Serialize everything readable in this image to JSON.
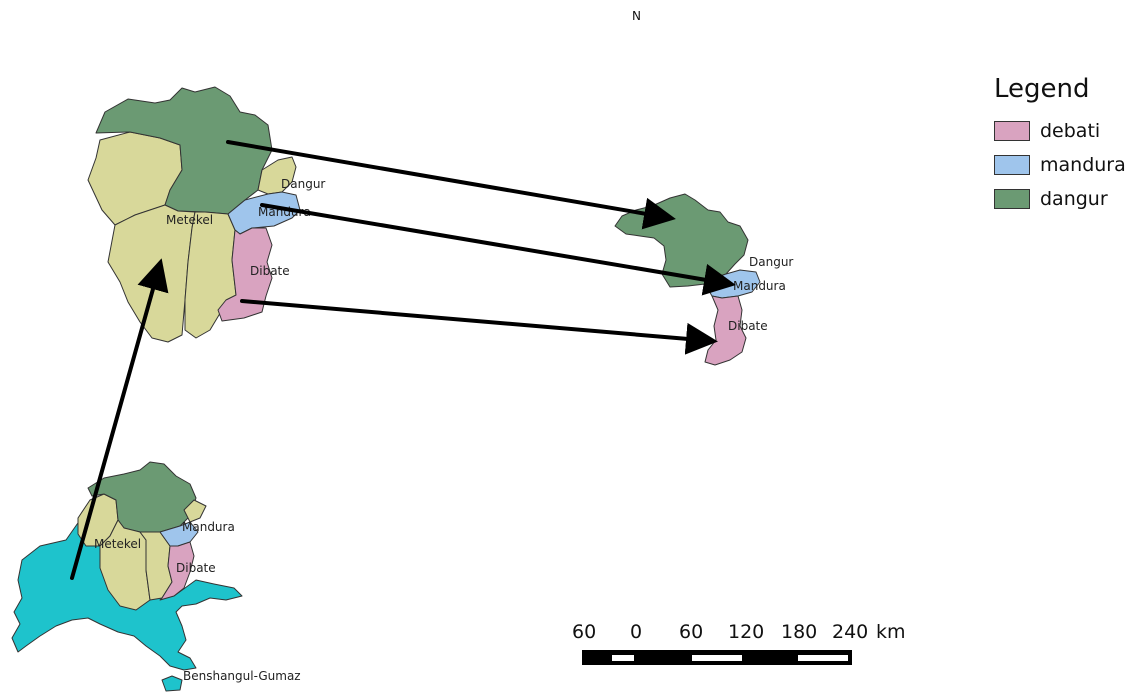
{
  "north_arrow": {
    "label": "N"
  },
  "legend": {
    "title": "Legend",
    "items": [
      {
        "label": "debati",
        "color": "#d9a3c0"
      },
      {
        "label": "mandura",
        "color": "#9fc5ec"
      },
      {
        "label": "dangur",
        "color": "#6b9a73"
      }
    ]
  },
  "colors": {
    "metekel_zone": "#d8d89a",
    "benshangul_region": "#1ec3cc",
    "arrow": "#000000",
    "outline": "#333333"
  },
  "maps": {
    "zone_map": {
      "labels": {
        "dangur": "Dangur",
        "metekel": "Metekel",
        "mandura": "Mandura",
        "dibate": "Dibate"
      }
    },
    "woreda_map": {
      "labels": {
        "dangur": "Dangur",
        "mandura": "Mandura",
        "dibate": "Dibate"
      }
    },
    "region_map": {
      "labels": {
        "metekel": "Metekel",
        "mandura": "Mandura",
        "dibate": "Dibate",
        "region": "Benshangul-Gumaz"
      }
    }
  },
  "scale_bar": {
    "ticks": [
      "60",
      "0",
      "60",
      "120",
      "180",
      "240"
    ],
    "unit": "km"
  }
}
